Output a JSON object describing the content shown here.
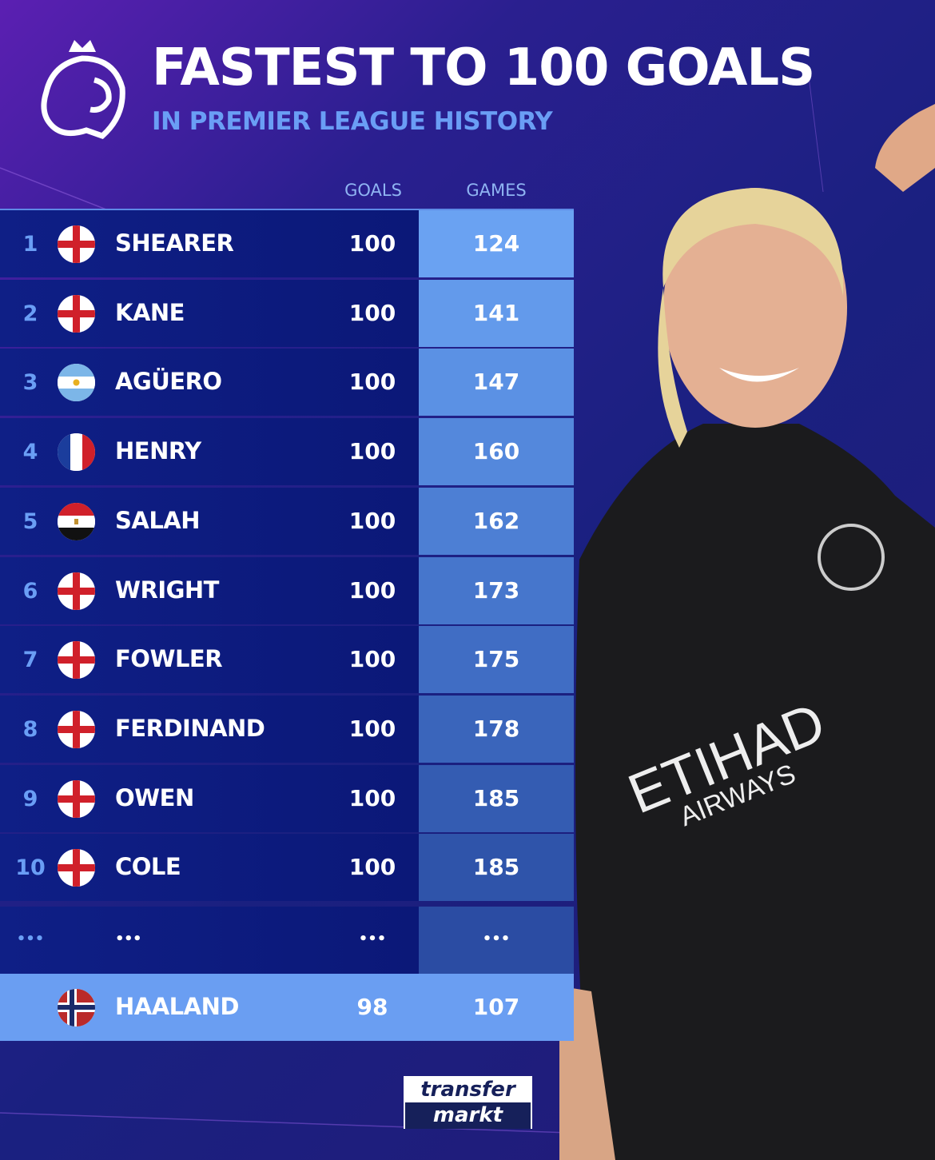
{
  "header": {
    "title": "FASTEST TO 100 GOALS",
    "subtitle": "IN PREMIER LEAGUE HISTORY"
  },
  "columns": {
    "goals": "GOALS",
    "games": "GAMES"
  },
  "rows": [
    {
      "rank": "1",
      "flag": "england",
      "name": "SHEARER",
      "goals": "100",
      "games": "124",
      "games_color": "#6aa2f2"
    },
    {
      "rank": "2",
      "flag": "england",
      "name": "KANE",
      "goals": "100",
      "games": "141",
      "games_color": "#639aeb"
    },
    {
      "rank": "3",
      "flag": "argentina",
      "name": "AGÜERO",
      "goals": "100",
      "games": "147",
      "games_color": "#5b91e4"
    },
    {
      "rank": "4",
      "flag": "france",
      "name": "HENRY",
      "goals": "100",
      "games": "160",
      "games_color": "#5488dc"
    },
    {
      "rank": "5",
      "flag": "egypt",
      "name": "SALAH",
      "goals": "100",
      "games": "162",
      "games_color": "#4d7fd4"
    },
    {
      "rank": "6",
      "flag": "england",
      "name": "WRIGHT",
      "goals": "100",
      "games": "173",
      "games_color": "#4676cc"
    },
    {
      "rank": "7",
      "flag": "england",
      "name": "FOWLER",
      "goals": "100",
      "games": "175",
      "games_color": "#406dc4"
    },
    {
      "rank": "8",
      "flag": "england",
      "name": "FERDINAND",
      "goals": "100",
      "games": "178",
      "games_color": "#3a65bb"
    },
    {
      "rank": "9",
      "flag": "england",
      "name": "OWEN",
      "goals": "100",
      "games": "185",
      "games_color": "#345cb2"
    },
    {
      "rank": "10",
      "flag": "england",
      "name": "COLE",
      "goals": "100",
      "games": "185",
      "games_color": "#2f54aa"
    }
  ],
  "ellipsis": {
    "rank": "•••",
    "name": "•••",
    "goals": "•••",
    "games": "•••",
    "games_color": "#2b4ca3"
  },
  "highlight": {
    "flag": "norway",
    "name": "HAALAND",
    "goals": "98",
    "games": "107"
  },
  "brand": {
    "line1": "transfer",
    "line2": "markt"
  },
  "logo": "premier-league-lion-icon",
  "colors": {
    "accent": "#6a9ef5",
    "row_bg": "#0f1f86",
    "highlight": "#6a9ef2"
  }
}
